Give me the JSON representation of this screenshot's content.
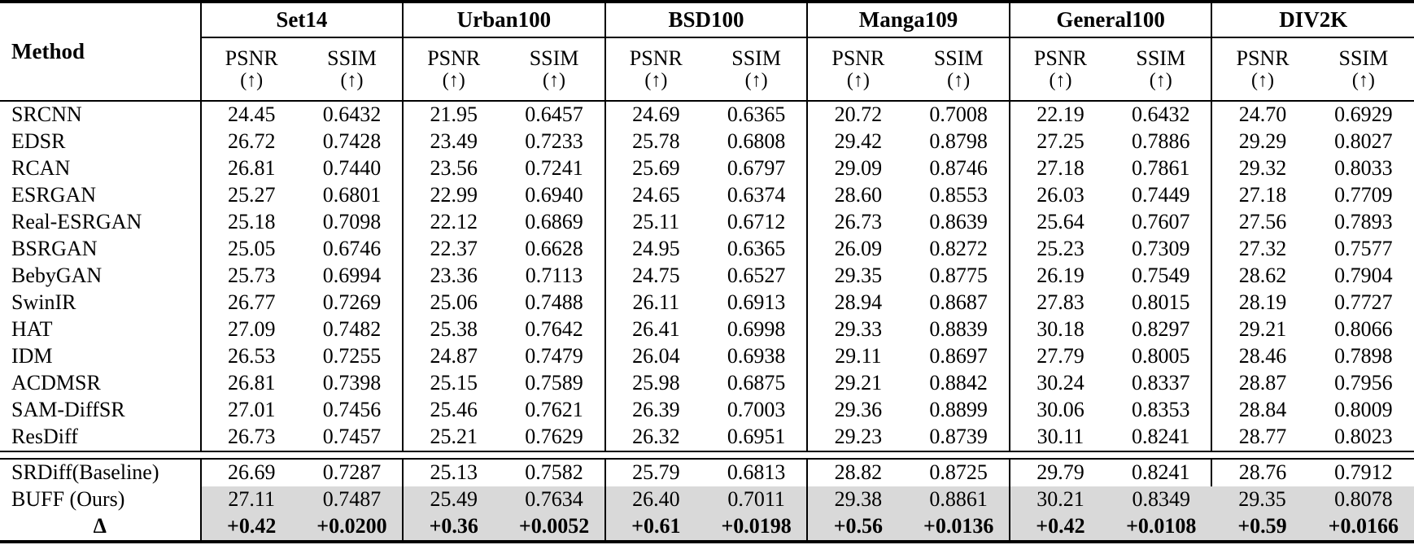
{
  "colors": {
    "highlight": "#d9d9d9",
    "text": "#000000",
    "background": "#ffffff",
    "rule": "#000000"
  },
  "table": {
    "method_header": "Method",
    "metric_psnr": "PSNR",
    "metric_ssim": "SSIM",
    "arrow": "(↑)",
    "groups": [
      {
        "name": "Set14"
      },
      {
        "name": "Urban100"
      },
      {
        "name": "BSD100"
      },
      {
        "name": "Manga109"
      },
      {
        "name": "General100"
      },
      {
        "name": "DIV2K"
      }
    ],
    "rows": [
      {
        "method": "SRCNN",
        "values": [
          "24.45",
          "0.6432",
          "21.95",
          "0.6457",
          "24.69",
          "0.6365",
          "20.72",
          "0.7008",
          "22.19",
          "0.6432",
          "24.70",
          "0.6929"
        ]
      },
      {
        "method": "EDSR",
        "values": [
          "26.72",
          "0.7428",
          "23.49",
          "0.7233",
          "25.78",
          "0.6808",
          "29.42",
          "0.8798",
          "27.25",
          "0.7886",
          "29.29",
          "0.8027"
        ]
      },
      {
        "method": "RCAN",
        "values": [
          "26.81",
          "0.7440",
          "23.56",
          "0.7241",
          "25.69",
          "0.6797",
          "29.09",
          "0.8746",
          "27.18",
          "0.7861",
          "29.32",
          "0.8033"
        ]
      },
      {
        "method": "ESRGAN",
        "values": [
          "25.27",
          "0.6801",
          "22.99",
          "0.6940",
          "24.65",
          "0.6374",
          "28.60",
          "0.8553",
          "26.03",
          "0.7449",
          "27.18",
          "0.7709"
        ]
      },
      {
        "method": "Real-ESRGAN",
        "values": [
          "25.18",
          "0.7098",
          "22.12",
          "0.6869",
          "25.11",
          "0.6712",
          "26.73",
          "0.8639",
          "25.64",
          "0.7607",
          "27.56",
          "0.7893"
        ]
      },
      {
        "method": "BSRGAN",
        "values": [
          "25.05",
          "0.6746",
          "22.37",
          "0.6628",
          "24.95",
          "0.6365",
          "26.09",
          "0.8272",
          "25.23",
          "0.7309",
          "27.32",
          "0.7577"
        ]
      },
      {
        "method": "BebyGAN",
        "values": [
          "25.73",
          "0.6994",
          "23.36",
          "0.7113",
          "24.75",
          "0.6527",
          "29.35",
          "0.8775",
          "26.19",
          "0.7549",
          "28.62",
          "0.7904"
        ]
      },
      {
        "method": "SwinIR",
        "values": [
          "26.77",
          "0.7269",
          "25.06",
          "0.7488",
          "26.11",
          "0.6913",
          "28.94",
          "0.8687",
          "27.83",
          "0.8015",
          "28.19",
          "0.7727"
        ]
      },
      {
        "method": "HAT",
        "values": [
          "27.09",
          "0.7482",
          "25.38",
          "0.7642",
          "26.41",
          "0.6998",
          "29.33",
          "0.8839",
          "30.18",
          "0.8297",
          "29.21",
          "0.8066"
        ]
      },
      {
        "method": "IDM",
        "values": [
          "26.53",
          "0.7255",
          "24.87",
          "0.7479",
          "26.04",
          "0.6938",
          "29.11",
          "0.8697",
          "27.79",
          "0.8005",
          "28.46",
          "0.7898"
        ]
      },
      {
        "method": "ACDMSR",
        "values": [
          "26.81",
          "0.7398",
          "25.15",
          "0.7589",
          "25.98",
          "0.6875",
          "29.21",
          "0.8842",
          "30.24",
          "0.8337",
          "28.87",
          "0.7956"
        ]
      },
      {
        "method": "SAM-DiffSR",
        "values": [
          "27.01",
          "0.7456",
          "25.46",
          "0.7621",
          "26.39",
          "0.7003",
          "29.36",
          "0.8899",
          "30.06",
          "0.8353",
          "28.84",
          "0.8009"
        ]
      },
      {
        "method": "ResDiff",
        "values": [
          "26.73",
          "0.7457",
          "25.21",
          "0.7629",
          "26.32",
          "0.6951",
          "29.23",
          "0.8739",
          "30.11",
          "0.8241",
          "28.77",
          "0.8023"
        ]
      }
    ],
    "summary_rows": [
      {
        "method": "SRDiff(Baseline)",
        "values": [
          "26.69",
          "0.7287",
          "25.13",
          "0.7582",
          "25.79",
          "0.6813",
          "28.82",
          "0.8725",
          "29.79",
          "0.8241",
          "28.76",
          "0.7912"
        ],
        "highlight": false,
        "bold": false,
        "center": false
      },
      {
        "method": "BUFF (Ours)",
        "values": [
          "27.11",
          "0.7487",
          "25.49",
          "0.7634",
          "26.40",
          "0.7011",
          "29.38",
          "0.8861",
          "30.21",
          "0.8349",
          "29.35",
          "0.8078"
        ],
        "highlight": true,
        "bold": false,
        "center": false
      },
      {
        "method": "Δ",
        "values": [
          "+0.42",
          "+0.0200",
          "+0.36",
          "+0.0052",
          "+0.61",
          "+0.0198",
          "+0.56",
          "+0.0136",
          "+0.42",
          "+0.0108",
          "+0.59",
          "+0.0166"
        ],
        "highlight": true,
        "bold": true,
        "center": true
      }
    ]
  }
}
